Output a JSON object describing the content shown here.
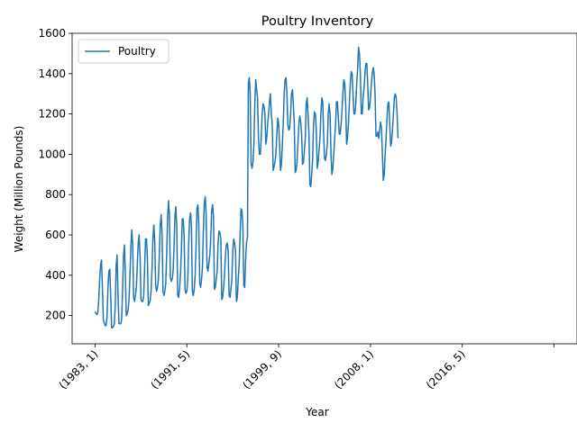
{
  "chart_data": {
    "type": "line",
    "title": "Poultry Inventory",
    "xlabel": "Year",
    "ylabel": "Weight (Million Pounds)",
    "x_tick_labels": [
      "(1983, 1)",
      "(1991, 5)",
      "(1999, 9)",
      "(2008, 1)",
      "(2016, 5)",
      ""
    ],
    "x_tick_months": [
      0,
      100,
      200,
      300,
      400,
      500
    ],
    "ylim": [
      60,
      1600
    ],
    "y_ticks": [
      200,
      400,
      600,
      800,
      1000,
      1200,
      1400,
      1600
    ],
    "legend_position": "upper-left",
    "grid": false,
    "series": [
      {
        "name": "Poultry",
        "color": "#1f77b4",
        "start": "1983-01",
        "frequency": "monthly",
        "values": [
          220,
          210,
          205,
          215,
          280,
          380,
          450,
          475,
          340,
          175,
          165,
          150,
          150,
          190,
          330,
          420,
          430,
          300,
          140,
          140,
          145,
          160,
          250,
          450,
          500,
          300,
          160,
          160,
          160,
          180,
          330,
          500,
          550,
          400,
          200,
          210,
          230,
          280,
          400,
          540,
          625,
          550,
          290,
          270,
          300,
          340,
          450,
          560,
          600,
          500,
          280,
          270,
          270,
          300,
          440,
          580,
          580,
          490,
          250,
          260,
          275,
          320,
          430,
          580,
          650,
          570,
          350,
          320,
          340,
          380,
          500,
          650,
          700,
          600,
          320,
          300,
          320,
          360,
          500,
          680,
          770,
          700,
          390,
          370,
          380,
          420,
          540,
          690,
          740,
          640,
          300,
          290,
          330,
          400,
          520,
          680,
          680,
          600,
          330,
          310,
          320,
          380,
          560,
          680,
          710,
          640,
          320,
          300,
          330,
          400,
          540,
          730,
          750,
          650,
          360,
          340,
          380,
          440,
          620,
          760,
          790,
          700,
          440,
          420,
          460,
          500,
          580,
          720,
          750,
          690,
          330,
          340,
          380,
          420,
          560,
          620,
          610,
          580,
          280,
          290,
          340,
          400,
          500,
          550,
          560,
          520,
          300,
          290,
          330,
          380,
          520,
          580,
          560,
          520,
          270,
          290,
          380,
          460,
          600,
          730,
          720,
          650,
          350,
          340,
          480,
          560,
          590,
          1350,
          1380,
          1300,
          950,
          930,
          960,
          1050,
          1250,
          1370,
          1320,
          1280,
          1080,
          1000,
          1000,
          1080,
          1200,
          1250,
          1240,
          1200,
          1050,
          1080,
          1150,
          1200,
          1260,
          1300,
          1200,
          1150,
          920,
          940,
          960,
          1000,
          1100,
          1180,
          1150,
          1050,
          920,
          950,
          1050,
          1150,
          1300,
          1370,
          1380,
          1300,
          1150,
          1120,
          1130,
          1200,
          1300,
          1320,
          1250,
          1150,
          910,
          920,
          960,
          1050,
          1150,
          1190,
          1160,
          1100,
          950,
          960,
          1020,
          1080,
          1250,
          1280,
          1200,
          1100,
          850,
          840,
          900,
          980,
          1150,
          1210,
          1200,
          1120,
          930,
          960,
          1020,
          1080,
          1200,
          1280,
          1260,
          1100,
          980,
          970,
          1000,
          1050,
          1200,
          1250,
          1200,
          1000,
          900,
          930,
          1000,
          1080,
          1150,
          1260,
          1260,
          1180,
          1100,
          1100,
          1150,
          1220,
          1300,
          1370,
          1350,
          1250,
          1050,
          1080,
          1150,
          1250,
          1350,
          1410,
          1400,
          1300,
          1200,
          1200,
          1250,
          1350,
          1420,
          1530,
          1500,
          1400,
          1200,
          1200,
          1280,
          1330,
          1400,
          1450,
          1450,
          1350,
          1220,
          1230,
          1280,
          1350,
          1400,
          1430,
          1400,
          1300,
          1090,
          1090,
          1110,
          1080,
          1120,
          1160,
          1130,
          1000,
          870,
          900,
          1000,
          1080,
          1180,
          1250,
          1260,
          1150,
          1040,
          1060,
          1120,
          1200,
          1280,
          1300,
          1280,
          1200,
          1080
        ]
      }
    ]
  }
}
